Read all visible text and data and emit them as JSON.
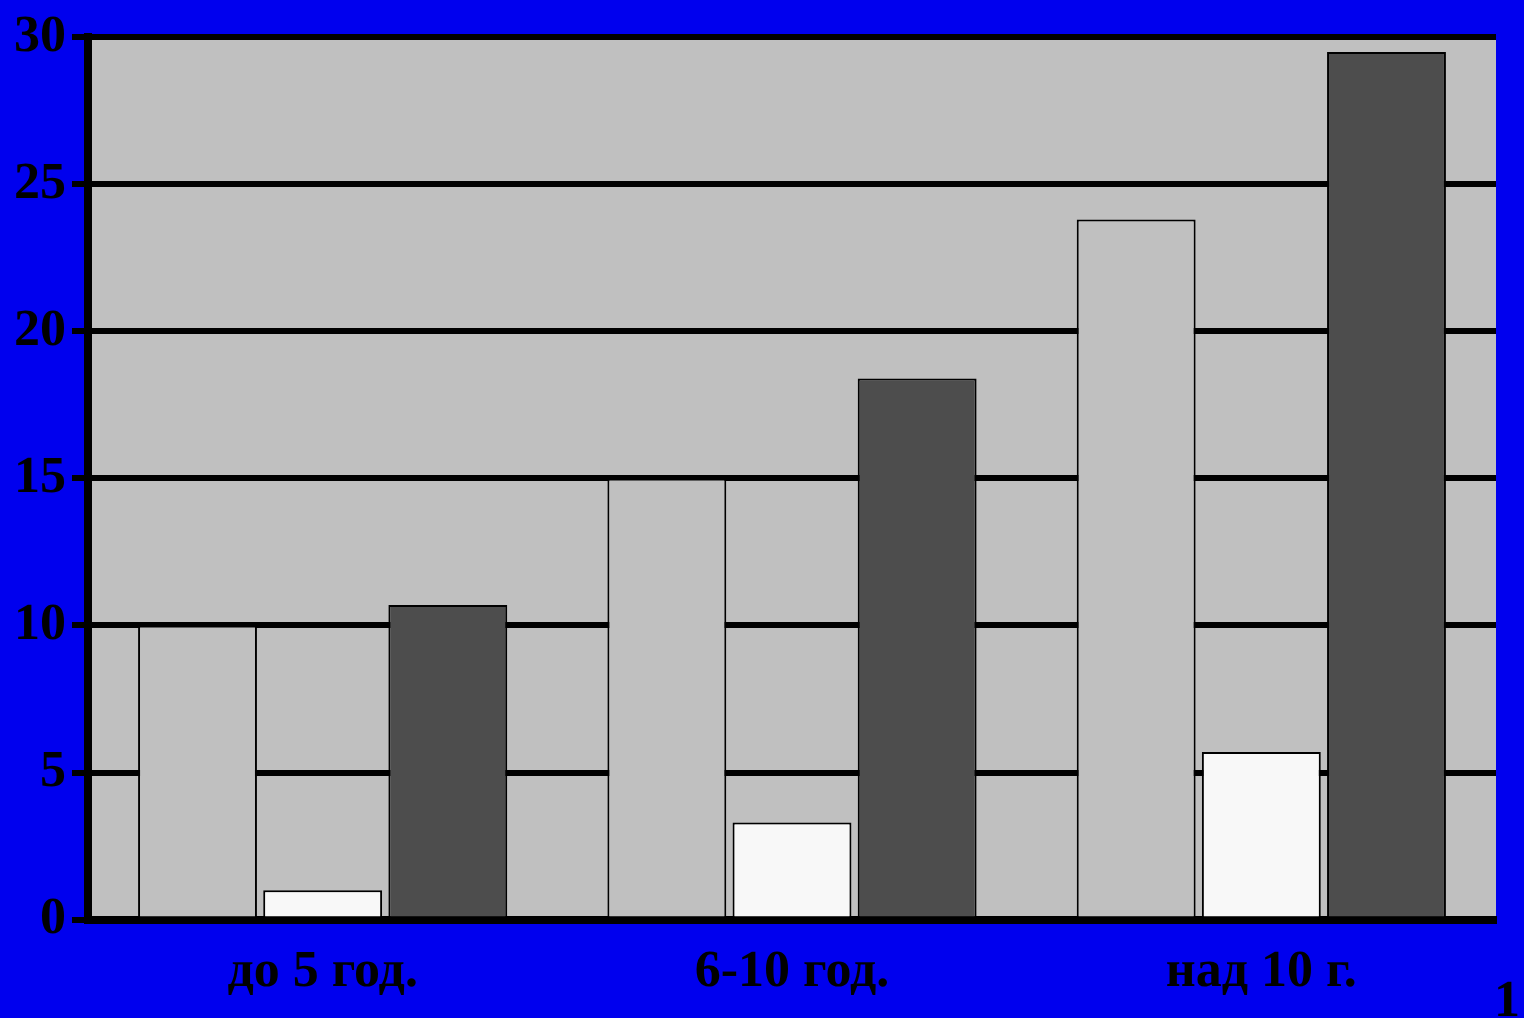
{
  "chart_data": {
    "type": "bar",
    "categories": [
      "до 5 год.",
      "6-10 год.",
      "над 10 г."
    ],
    "series": [
      {
        "color": "#c0c0c0",
        "values": [
          10,
          15,
          23.8
        ]
      },
      {
        "color": "#f8f8f8",
        "values": [
          1,
          3.3,
          5.7
        ]
      },
      {
        "color": "#4d4d4d",
        "values": [
          10.7,
          18.4,
          29.5
        ]
      }
    ],
    "ylim": [
      0,
      30
    ],
    "yticks": [
      0,
      5,
      10,
      15,
      20,
      25,
      30
    ],
    "grid": "y",
    "legend": false,
    "annotations": [
      "1"
    ]
  }
}
